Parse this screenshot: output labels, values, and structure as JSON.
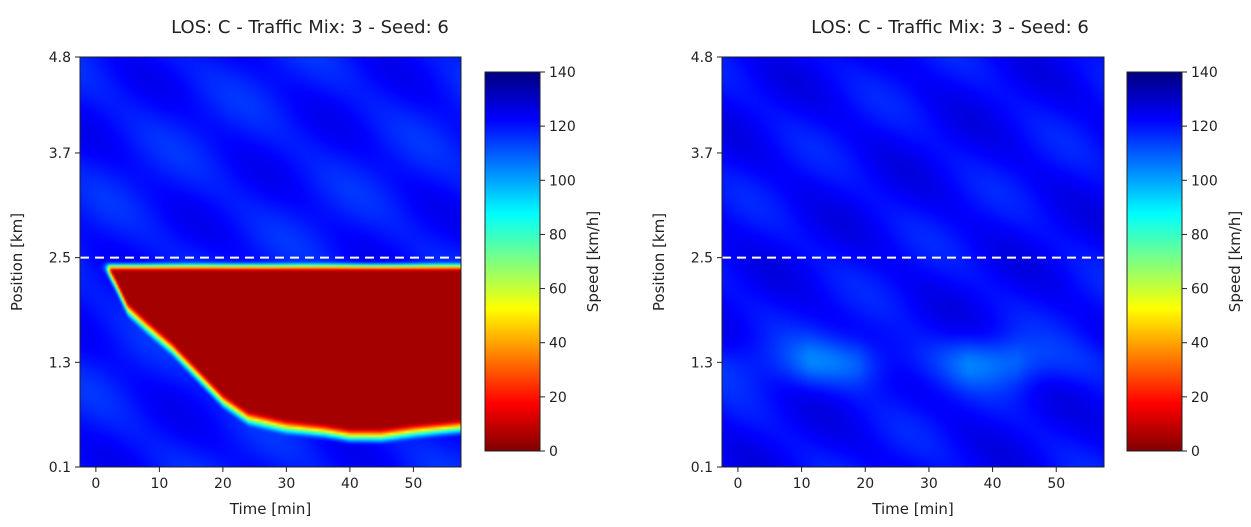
{
  "chart_data": [
    {
      "type": "heatmap",
      "title": "LOS: C - Traffic Mix: 3 - Seed: 6",
      "xlabel": "Time [min]",
      "ylabel": "Position [km]",
      "colorbar_label": "Speed [km/h]",
      "colormap": "jet_r",
      "xlim": [
        -2.5,
        57.5
      ],
      "ylim": [
        0.1,
        4.8
      ],
      "clim": [
        0,
        140
      ],
      "xticks": [
        0,
        10,
        20,
        30,
        40,
        50
      ],
      "xtick_labels": [
        "0",
        "10",
        "20",
        "30",
        "40",
        "50"
      ],
      "yticks": [
        0.1,
        1.3,
        2.5,
        3.7,
        4.8
      ],
      "ytick_labels": [
        "0.1",
        "1.3",
        "2.5",
        "3.7",
        "4.8"
      ],
      "cticks": [
        0,
        20,
        40,
        60,
        80,
        100,
        120,
        140
      ],
      "ctick_labels": [
        "0",
        "20",
        "40",
        "60",
        "80",
        "100",
        "120",
        "140"
      ],
      "reference_line": {
        "position_km": 2.5,
        "style": "dashed",
        "color": "#ffffff"
      },
      "free_flow_speed": 120,
      "congestion": {
        "speed": 5,
        "head_position_km": 2.4,
        "tail_boundary": [
          {
            "time_min": 1.5,
            "position_km": 2.4
          },
          {
            "time_min": 3,
            "position_km": 2.2
          },
          {
            "time_min": 5,
            "position_km": 1.9
          },
          {
            "time_min": 8,
            "position_km": 1.7
          },
          {
            "time_min": 12,
            "position_km": 1.45
          },
          {
            "time_min": 16,
            "position_km": 1.15
          },
          {
            "time_min": 20,
            "position_km": 0.85
          },
          {
            "time_min": 24,
            "position_km": 0.65
          },
          {
            "time_min": 30,
            "position_km": 0.55
          },
          {
            "time_min": 36,
            "position_km": 0.5
          },
          {
            "time_min": 40,
            "position_km": 0.45
          },
          {
            "time_min": 45,
            "position_km": 0.45
          },
          {
            "time_min": 50,
            "position_km": 0.5
          },
          {
            "time_min": 57.5,
            "position_km": 0.55
          }
        ]
      }
    },
    {
      "type": "heatmap",
      "title": "LOS: C - Traffic Mix: 3 - Seed: 6",
      "xlabel": "Time [min]",
      "ylabel": "Position [km]",
      "colorbar_label": "Speed [km/h]",
      "colormap": "jet_r",
      "xlim": [
        -2.5,
        57.5
      ],
      "ylim": [
        0.1,
        4.8
      ],
      "clim": [
        0,
        140
      ],
      "xticks": [
        0,
        10,
        20,
        30,
        40,
        50
      ],
      "xtick_labels": [
        "0",
        "10",
        "20",
        "30",
        "40",
        "50"
      ],
      "yticks": [
        0.1,
        1.3,
        2.5,
        3.7,
        4.8
      ],
      "ytick_labels": [
        "0.1",
        "1.3",
        "2.5",
        "3.7",
        "4.8"
      ],
      "cticks": [
        0,
        20,
        40,
        60,
        80,
        100,
        120,
        140
      ],
      "ctick_labels": [
        "0",
        "20",
        "40",
        "60",
        "80",
        "100",
        "120",
        "140"
      ],
      "reference_line": {
        "position_km": 2.5,
        "style": "dashed",
        "color": "#ffffff"
      },
      "free_flow_speed": 122,
      "slow_band": {
        "position_km": 1.3,
        "min_speed": 108,
        "lowest_at_min": [
          15,
          40
        ]
      },
      "congestion": null
    }
  ]
}
